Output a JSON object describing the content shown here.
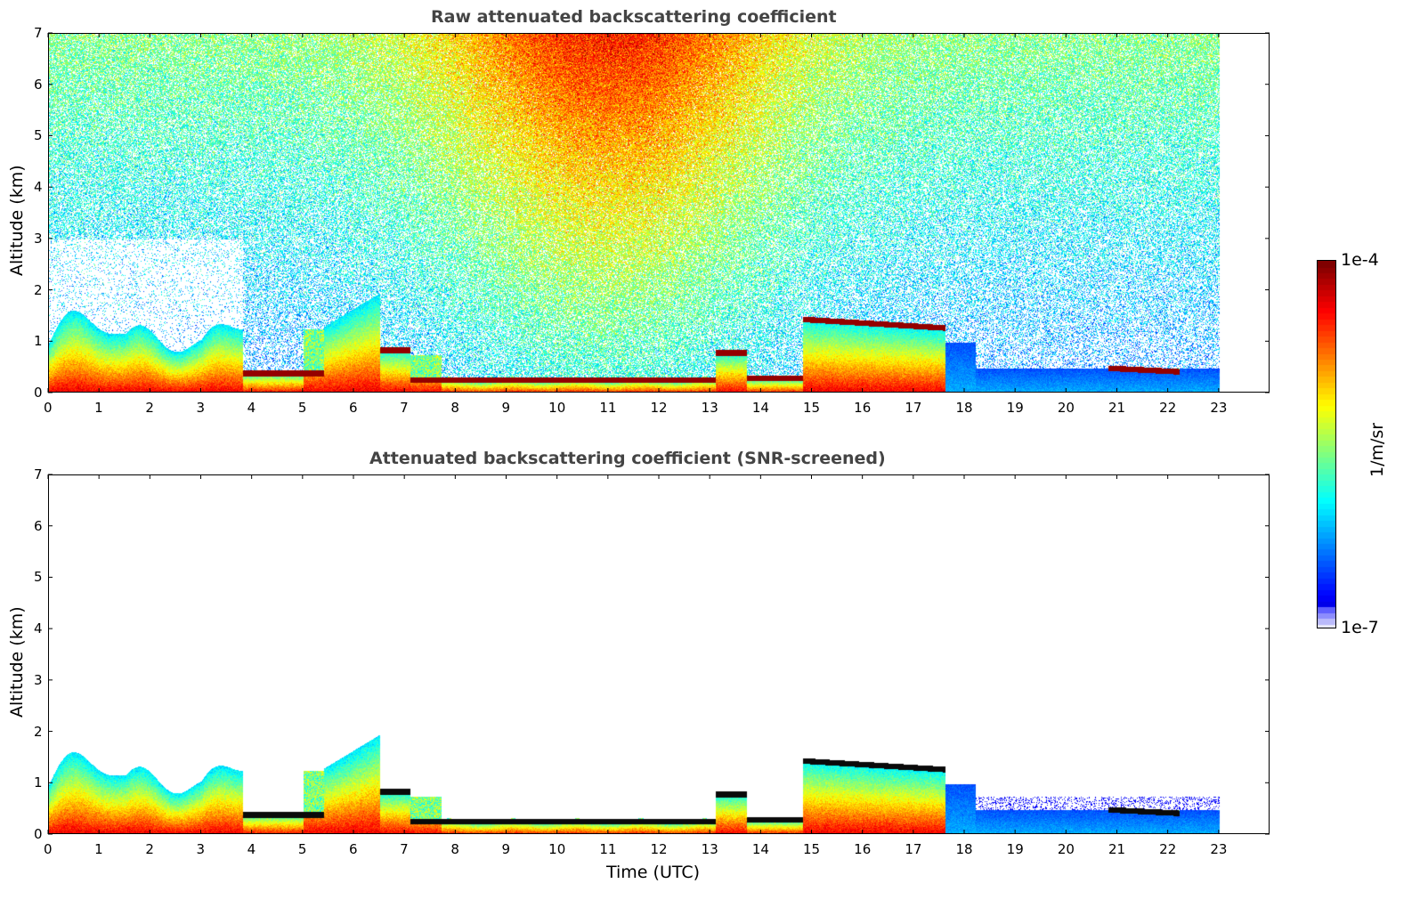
{
  "chart_data": [
    {
      "type": "heatmap",
      "title": "Raw attenuated backscattering coefficient",
      "xlabel": "",
      "ylabel": "Altitude (km)",
      "xlim": [
        0,
        24
      ],
      "ylim": [
        0,
        7
      ],
      "x_ticks": [
        "0",
        "1",
        "2",
        "3",
        "4",
        "5",
        "6",
        "7",
        "8",
        "9",
        "10",
        "11",
        "12",
        "13",
        "14",
        "15",
        "16",
        "17",
        "18",
        "19",
        "20",
        "21",
        "22",
        "23"
      ],
      "y_ticks": [
        "0",
        "1",
        "2",
        "3",
        "4",
        "5",
        "6",
        "7"
      ],
      "data_time_range": [
        0,
        23
      ],
      "features": [
        {
          "time": [
            0,
            3.8
          ],
          "top_km": 1.5,
          "description": "boundary layer aerosol"
        },
        {
          "time": [
            3.8,
            5.4
          ],
          "top_km": 0.4
        },
        {
          "time": [
            5.4,
            6.5
          ],
          "top_km": 2.0
        },
        {
          "time": [
            7.1,
            13.0
          ],
          "top_km": 0.25
        },
        {
          "time": [
            14.8,
            17.6
          ],
          "top_km": 1.5
        },
        {
          "time": [
            18,
            23
          ],
          "top_km": 0.5
        }
      ],
      "grid": false
    },
    {
      "type": "heatmap",
      "title": "Attenuated backscattering coefficient (SNR-screened)",
      "xlabel": "Time (UTC)",
      "ylabel": "Altitude (km)",
      "xlim": [
        0,
        24
      ],
      "ylim": [
        0,
        7
      ],
      "x_ticks": [
        "0",
        "1",
        "2",
        "3",
        "4",
        "5",
        "6",
        "7",
        "8",
        "9",
        "10",
        "11",
        "12",
        "13",
        "14",
        "15",
        "16",
        "17",
        "18",
        "19",
        "20",
        "21",
        "22",
        "23"
      ],
      "y_ticks": [
        "0",
        "1",
        "2",
        "3",
        "4",
        "5",
        "6",
        "7"
      ],
      "data_time_range": [
        0,
        23
      ],
      "grid": false
    }
  ],
  "colorbar": {
    "label": "1/m/sr",
    "max_label": "1e-4",
    "min_label": "1e-7",
    "scale": "log",
    "colormap": "jet"
  },
  "labels": {
    "top_title": "Raw attenuated backscattering coefficient",
    "bottom_title": "Attenuated backscattering coefficient (SNR-screened)",
    "top_ylabel": "Altitude (km)",
    "bottom_ylabel": "Altitude (km)",
    "xlabel": "Time (UTC)",
    "cb_label": "1/m/sr",
    "cb_max": "1e-4",
    "cb_min": "1e-7"
  }
}
